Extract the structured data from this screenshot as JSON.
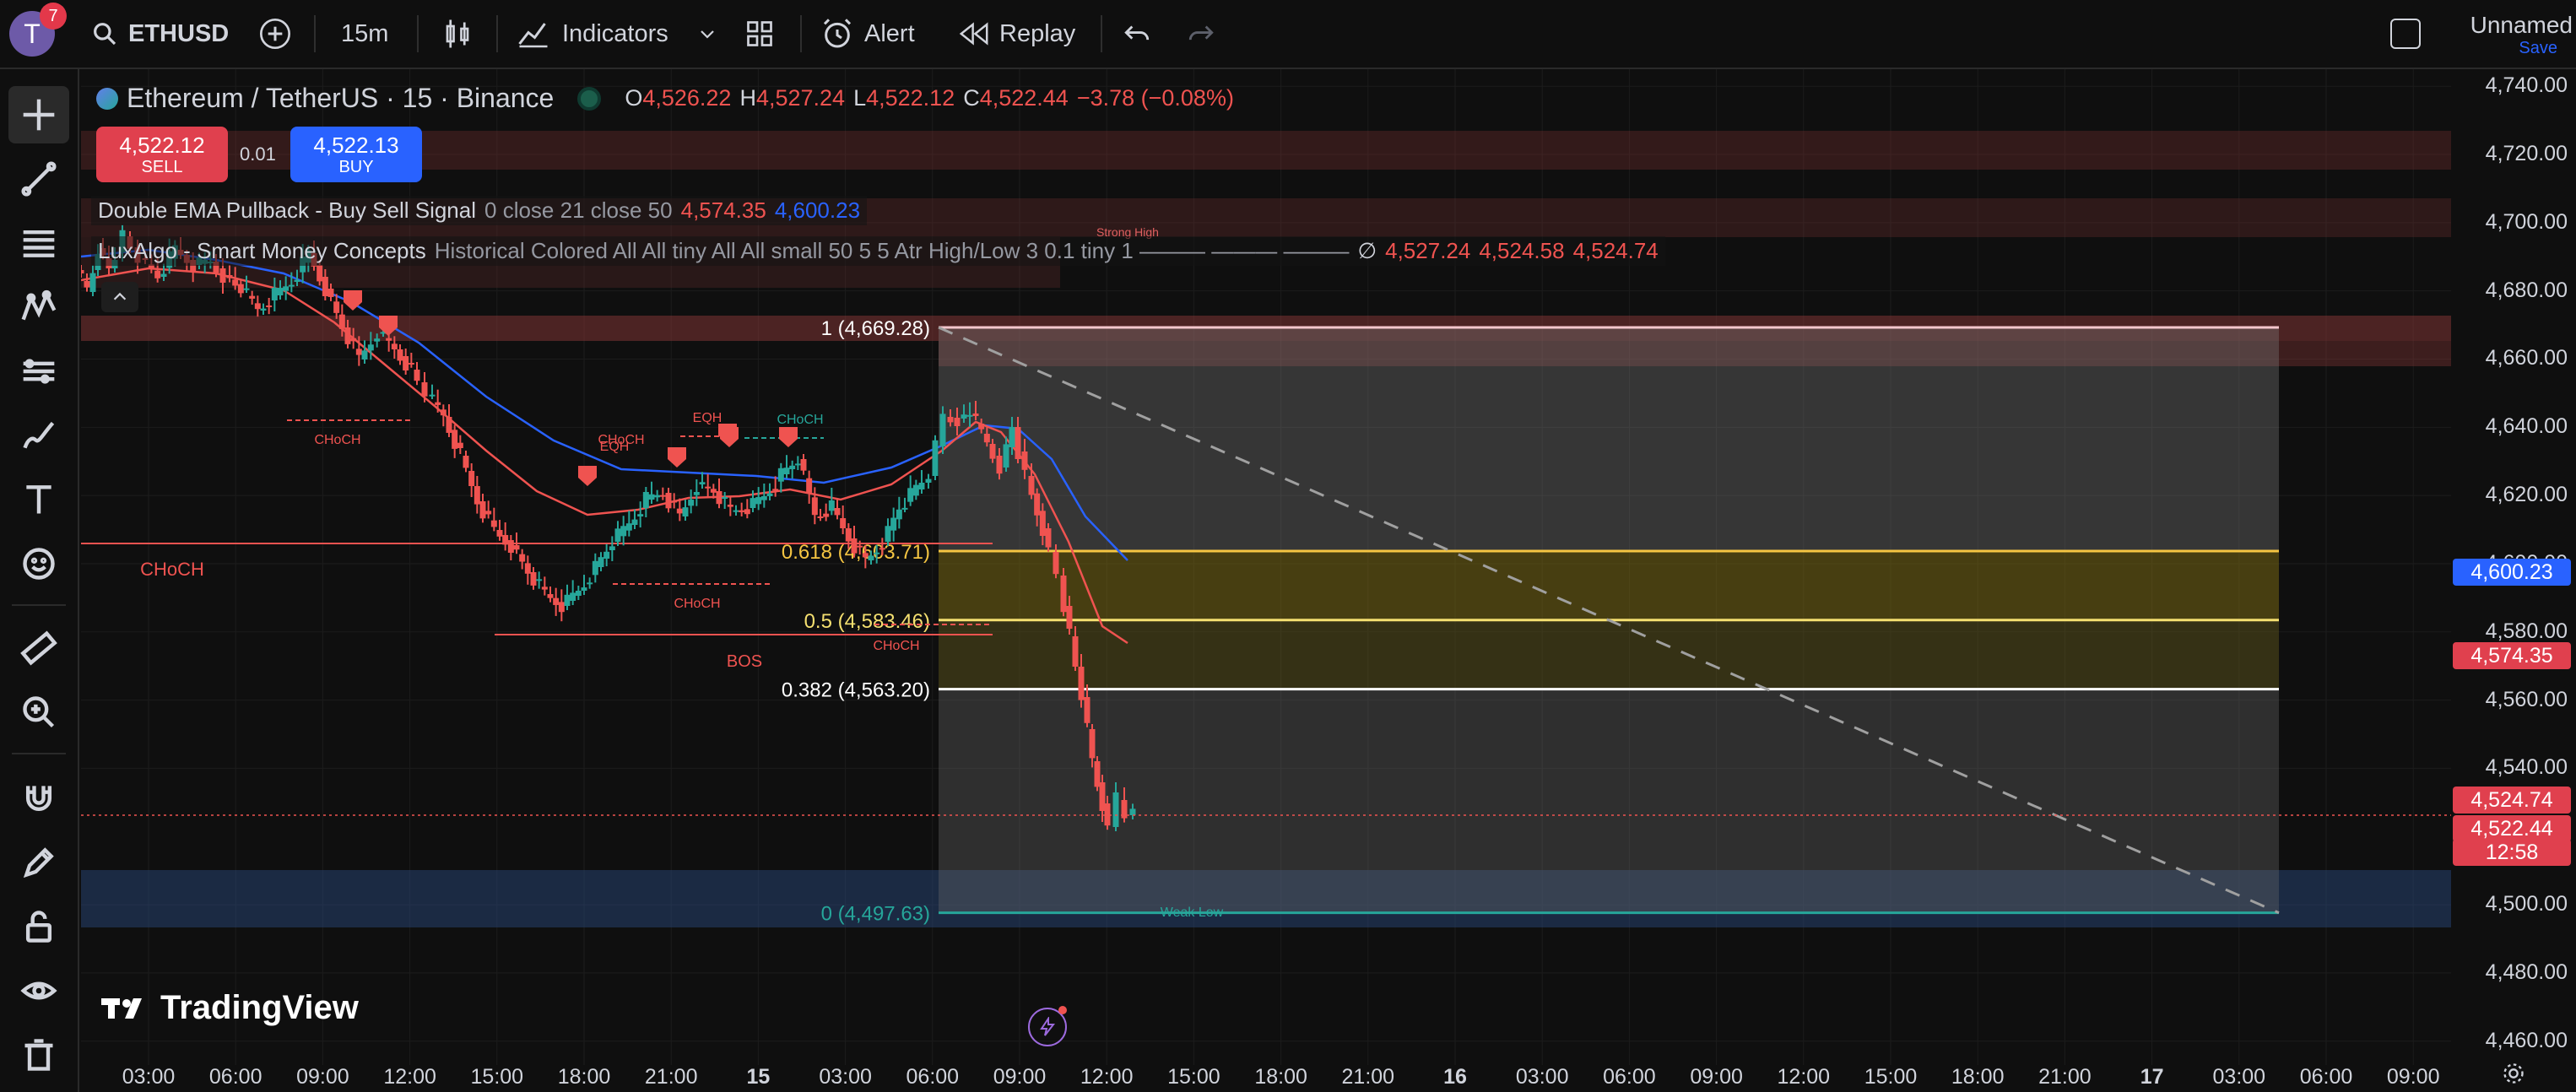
{
  "toolbar": {
    "avatar_initial": "T",
    "notification_count": "7",
    "symbol": "ETHUSD",
    "interval": "15m",
    "indicators_label": "Indicators",
    "alert_label": "Alert",
    "replay_label": "Replay",
    "layout_name": "Unnamed",
    "save_label": "Save"
  },
  "legend": {
    "title": "Ethereum / TetherUS · 15 · Binance",
    "o_label": "O",
    "o_value": "4,526.22",
    "h_label": "H",
    "h_value": "4,527.24",
    "l_label": "L",
    "l_value": "4,522.12",
    "c_label": "C",
    "c_value": "4,522.44",
    "change": "−3.78 (−0.08%)",
    "sell_price": "4,522.12",
    "sell_label": "SELL",
    "spread": "0.01",
    "buy_price": "4,522.13",
    "buy_label": "BUY",
    "ind1_name": "Double EMA Pullback - Buy Sell Signal",
    "ind1_params": "0 close 21 close 50",
    "ind1_v1": "4,574.35",
    "ind1_v2": "4,600.23",
    "ind2_name": "LuxAlgo - Smart Money Concepts",
    "ind2_params": "Historical Colored All All tiny All All small 50 5 5 Atr High/Low 3 0.1 tiny 1 ——— ——— ———",
    "ind2_empty": "∅",
    "ind2_v1": "4,527.24",
    "ind2_v2": "4,524.58",
    "ind2_v3": "4,524.74"
  },
  "chart_data": {
    "type": "candlestick",
    "symbol": "ETHUSD",
    "title": "Ethereum / TetherUS · 15 · Binance",
    "ylim": [
      4453,
      4745
    ],
    "y_ticks": [
      "4,740.00",
      "4,720.00",
      "4,700.00",
      "4,680.00",
      "4,660.00",
      "4,640.00",
      "4,620.00",
      "4,600.00",
      "4,580.00",
      "4,560.00",
      "4,540.00",
      "4,500.00",
      "4,480.00",
      "4,460.00"
    ],
    "x_ticks": [
      "03:00",
      "06:00",
      "09:00",
      "12:00",
      "15:00",
      "18:00",
      "21:00",
      "15",
      "03:00",
      "06:00",
      "09:00",
      "12:00",
      "15:00",
      "18:00",
      "21:00",
      "16",
      "03:00",
      "06:00",
      "09:00",
      "12:00",
      "15:00",
      "18:00",
      "21:00",
      "17",
      "03:00",
      "06:00",
      "09:00"
    ],
    "fib_levels": [
      {
        "label": "1 (4,669.28)",
        "price": 4669.28
      },
      {
        "label": "0.618 (4,603.71)",
        "price": 4603.71
      },
      {
        "label": "0.5 (4,583.46)",
        "price": 4583.46
      },
      {
        "label": "0.382 (4,563.20)",
        "price": 4563.2
      },
      {
        "label": "0 (4,497.63)",
        "price": 4497.63
      }
    ],
    "smc_labels": [
      "CHoCH",
      "CHoCH",
      "CHoCH",
      "CHoCH",
      "CHoCH",
      "CHoCH",
      "BOS",
      "EQH",
      "EQH",
      "Strong High",
      "Weak Low"
    ],
    "price_tags": [
      {
        "text": "4,600.23",
        "color": "#2962ff"
      },
      {
        "text": "4,574.35",
        "color": "#e0404e"
      },
      {
        "text": "4,524.74",
        "color": "#e0404e"
      },
      {
        "text": "4,522.44",
        "color": "#e0404e"
      },
      {
        "text": "12:58",
        "color": "#e0404e"
      }
    ],
    "watermark": "TradingView"
  },
  "colors": {
    "bull": "#26a69a",
    "bear": "#ef5350",
    "ema_fast": "#ef5350",
    "ema_slow": "#2962ff"
  }
}
